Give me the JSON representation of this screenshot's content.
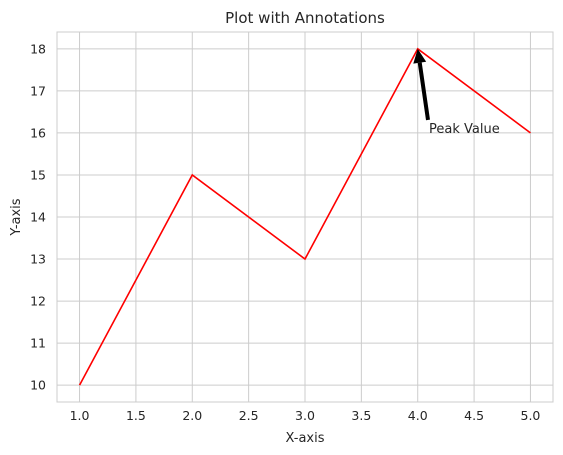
{
  "chart_data": {
    "type": "line",
    "title": "Plot with Annotations",
    "xlabel": "X-axis",
    "ylabel": "Y-axis",
    "xlim": [
      0.8,
      5.2
    ],
    "ylim": [
      9.6,
      18.4
    ],
    "xticks": [
      "1.0",
      "1.5",
      "2.0",
      "2.5",
      "3.0",
      "3.5",
      "4.0",
      "4.5",
      "5.0"
    ],
    "yticks": [
      "10",
      "11",
      "12",
      "13",
      "14",
      "15",
      "16",
      "17",
      "18"
    ],
    "grid": true,
    "series": [
      {
        "x": [
          1,
          2,
          3,
          4,
          5
        ],
        "y": [
          10,
          15,
          13,
          18,
          16
        ],
        "color": "#ff0000"
      }
    ],
    "annotations": [
      {
        "text": "Peak Value",
        "xy": [
          4,
          18
        ],
        "xytext": [
          4.1,
          16
        ],
        "arrow_color": "#000000"
      }
    ]
  }
}
